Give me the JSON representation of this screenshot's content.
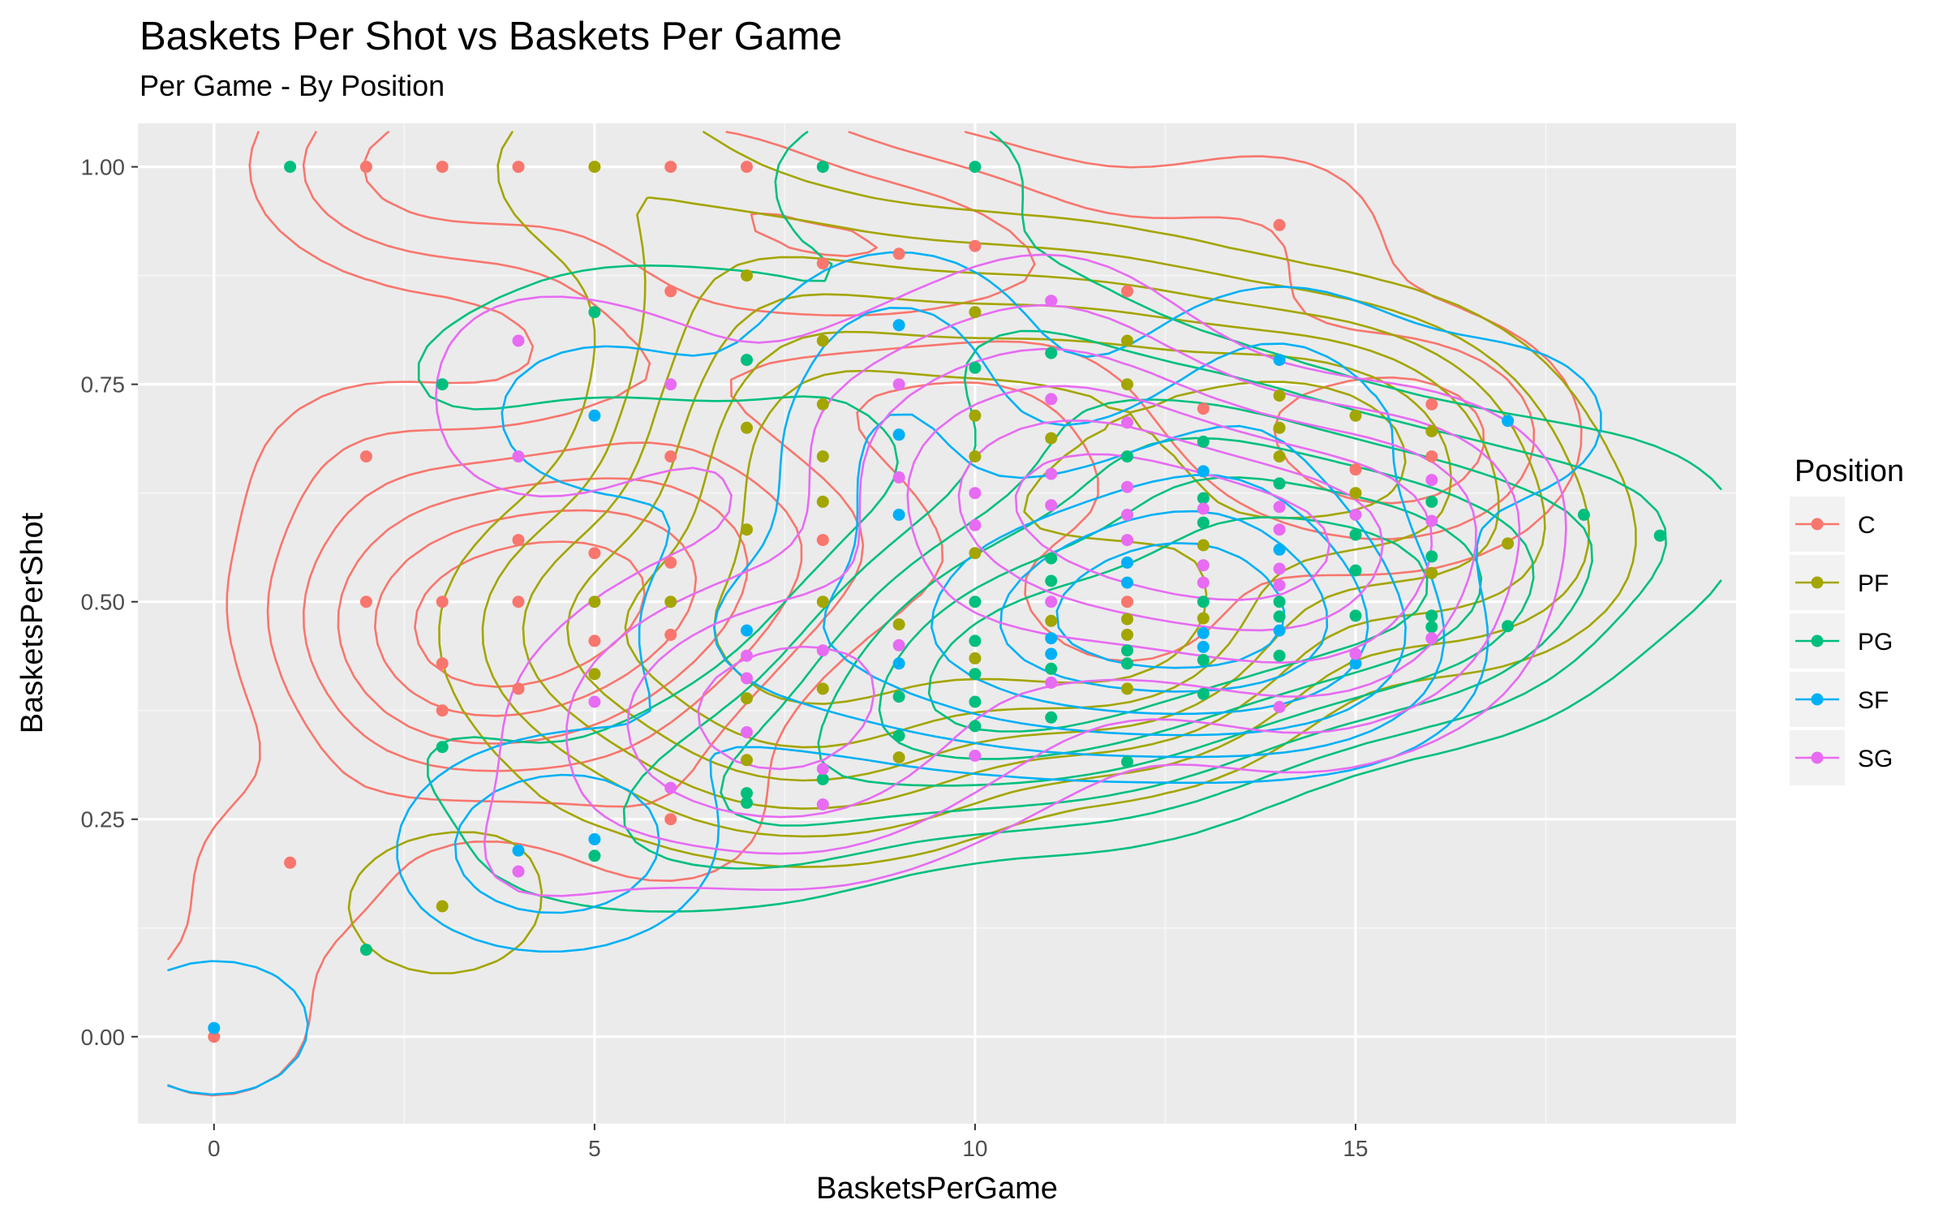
{
  "chart_data": {
    "type": "scatter",
    "title": "Baskets Per Shot vs Baskets Per Game",
    "subtitle": "Per Game - By Position",
    "xlabel": "BasketsPerGame",
    "ylabel": "BasketsPerShot",
    "xlim": [
      -1,
      20
    ],
    "ylim": [
      -0.1,
      1.05
    ],
    "x_ticks": [
      0,
      5,
      10,
      15
    ],
    "x_tick_labels": [
      "0",
      "5",
      "10",
      "15"
    ],
    "y_ticks": [
      0,
      0.25,
      0.5,
      0.75,
      1
    ],
    "y_tick_labels": [
      "0.00",
      "0.25",
      "0.50",
      "0.75",
      "1.00"
    ],
    "grid": true,
    "legend": {
      "title": "Position",
      "placement": "right"
    },
    "overlay": "2d density contours per position",
    "series": [
      {
        "name": "C",
        "color": "#F8766D",
        "points": [
          [
            0,
            0
          ],
          [
            1,
            0.2
          ],
          [
            2,
            1
          ],
          [
            2,
            0.667
          ],
          [
            2,
            0.5
          ],
          [
            3,
            1
          ],
          [
            3,
            0.5
          ],
          [
            3,
            0.429
          ],
          [
            3,
            0.375
          ],
          [
            4,
            1
          ],
          [
            4,
            0.571
          ],
          [
            4,
            0.5
          ],
          [
            4,
            0.4
          ],
          [
            5,
            0.556
          ],
          [
            5,
            0.455
          ],
          [
            6,
            1
          ],
          [
            6,
            0.857
          ],
          [
            6,
            0.667
          ],
          [
            6,
            0.545
          ],
          [
            6,
            0.462
          ],
          [
            6,
            0.25
          ],
          [
            7,
            1
          ],
          [
            8,
            0.889
          ],
          [
            8,
            0.571
          ],
          [
            9,
            0.9
          ],
          [
            10,
            0.909
          ],
          [
            12,
            0.857
          ],
          [
            12,
            0.5
          ],
          [
            13,
            0.722
          ],
          [
            14,
            0.933
          ],
          [
            15,
            0.652
          ],
          [
            16,
            0.727
          ],
          [
            16,
            0.667
          ]
        ]
      },
      {
        "name": "PF",
        "color": "#A3A500",
        "points": [
          [
            3,
            0.15
          ],
          [
            5,
            1
          ],
          [
            5,
            0.5
          ],
          [
            5,
            0.417
          ],
          [
            6,
            0.5
          ],
          [
            7,
            0.875
          ],
          [
            7,
            0.7
          ],
          [
            7,
            0.583
          ],
          [
            7,
            0.389
          ],
          [
            7,
            0.318
          ],
          [
            8,
            0.8
          ],
          [
            8,
            0.727
          ],
          [
            8,
            0.667
          ],
          [
            8,
            0.615
          ],
          [
            8,
            0.5
          ],
          [
            8,
            0.4
          ],
          [
            9,
            0.474
          ],
          [
            9,
            0.321
          ],
          [
            10,
            0.833
          ],
          [
            10,
            0.714
          ],
          [
            10,
            0.667
          ],
          [
            10,
            0.556
          ],
          [
            10,
            0.435
          ],
          [
            11,
            0.688
          ],
          [
            11,
            0.478
          ],
          [
            12,
            0.8
          ],
          [
            12,
            0.75
          ],
          [
            12,
            0.48
          ],
          [
            12,
            0.462
          ],
          [
            12,
            0.4
          ],
          [
            13,
            0.565
          ],
          [
            13,
            0.481
          ],
          [
            14,
            0.737
          ],
          [
            14,
            0.7
          ],
          [
            14,
            0.667
          ],
          [
            15,
            0.714
          ],
          [
            15,
            0.625
          ],
          [
            16,
            0.696
          ],
          [
            16,
            0.533
          ],
          [
            17,
            0.567
          ]
        ]
      },
      {
        "name": "PG",
        "color": "#00BF7D",
        "points": [
          [
            1,
            1
          ],
          [
            2,
            0.1
          ],
          [
            3,
            0.75
          ],
          [
            3,
            0.333
          ],
          [
            5,
            0.833
          ],
          [
            5,
            0.208
          ],
          [
            7,
            0.778
          ],
          [
            7,
            0.28
          ],
          [
            7,
            0.269
          ],
          [
            8,
            1
          ],
          [
            8,
            0.296
          ],
          [
            9,
            0.391
          ],
          [
            9,
            0.346
          ],
          [
            10,
            1
          ],
          [
            10,
            0.769
          ],
          [
            10,
            0.5
          ],
          [
            10,
            0.455
          ],
          [
            10,
            0.417
          ],
          [
            10,
            0.385
          ],
          [
            10,
            0.357
          ],
          [
            11,
            0.786
          ],
          [
            11,
            0.55
          ],
          [
            11,
            0.524
          ],
          [
            11,
            0.423
          ],
          [
            11,
            0.367
          ],
          [
            12,
            0.667
          ],
          [
            12,
            0.444
          ],
          [
            12,
            0.429
          ],
          [
            12,
            0.316
          ],
          [
            13,
            0.684
          ],
          [
            13,
            0.619
          ],
          [
            13,
            0.591
          ],
          [
            13,
            0.5
          ],
          [
            13,
            0.433
          ],
          [
            13,
            0.394
          ],
          [
            14,
            0.636
          ],
          [
            14,
            0.5
          ],
          [
            14,
            0.483
          ],
          [
            14,
            0.438
          ],
          [
            15,
            0.577
          ],
          [
            15,
            0.536
          ],
          [
            15,
            0.484
          ],
          [
            16,
            0.615
          ],
          [
            16,
            0.552
          ],
          [
            16,
            0.484
          ],
          [
            16,
            0.471
          ],
          [
            17,
            0.472
          ],
          [
            18,
            0.6
          ],
          [
            19,
            0.576
          ]
        ]
      },
      {
        "name": "SF",
        "color": "#00B0F6",
        "points": [
          [
            0,
            0.01
          ],
          [
            4,
            0.214
          ],
          [
            5,
            0.714
          ],
          [
            5,
            0.227
          ],
          [
            7,
            0.467
          ],
          [
            9,
            0.818
          ],
          [
            9,
            0.692
          ],
          [
            9,
            0.6
          ],
          [
            9,
            0.429
          ],
          [
            11,
            0.458
          ],
          [
            11,
            0.44
          ],
          [
            12,
            0.545
          ],
          [
            12,
            0.522
          ],
          [
            13,
            0.65
          ],
          [
            13,
            0.464
          ],
          [
            13,
            0.448
          ],
          [
            14,
            0.778
          ],
          [
            14,
            0.56
          ],
          [
            14,
            0.467
          ],
          [
            15,
            0.429
          ],
          [
            17,
            0.708
          ]
        ]
      },
      {
        "name": "SG",
        "color": "#E76BF3",
        "points": [
          [
            4,
            0.8
          ],
          [
            4,
            0.667
          ],
          [
            4,
            0.19
          ],
          [
            5,
            0.385
          ],
          [
            6,
            0.75
          ],
          [
            6,
            0.286
          ],
          [
            7,
            0.438
          ],
          [
            7,
            0.412
          ],
          [
            7,
            0.35
          ],
          [
            8,
            0.444
          ],
          [
            8,
            0.308
          ],
          [
            8,
            0.267
          ],
          [
            9,
            0.75
          ],
          [
            9,
            0.643
          ],
          [
            9,
            0.45
          ],
          [
            10,
            0.625
          ],
          [
            10,
            0.588
          ],
          [
            10,
            0.323
          ],
          [
            11,
            0.846
          ],
          [
            11,
            0.733
          ],
          [
            11,
            0.647
          ],
          [
            11,
            0.611
          ],
          [
            11,
            0.5
          ],
          [
            11,
            0.407
          ],
          [
            12,
            0.706
          ],
          [
            12,
            0.632
          ],
          [
            12,
            0.6
          ],
          [
            12,
            0.571
          ],
          [
            13,
            0.607
          ],
          [
            13,
            0.542
          ],
          [
            13,
            0.522
          ],
          [
            14,
            0.609
          ],
          [
            14,
            0.583
          ],
          [
            14,
            0.538
          ],
          [
            14,
            0.519
          ],
          [
            14,
            0.379
          ],
          [
            15,
            0.6
          ],
          [
            15,
            0.44
          ],
          [
            16,
            0.64
          ],
          [
            16,
            0.593
          ],
          [
            16,
            0.458
          ]
        ]
      }
    ]
  }
}
